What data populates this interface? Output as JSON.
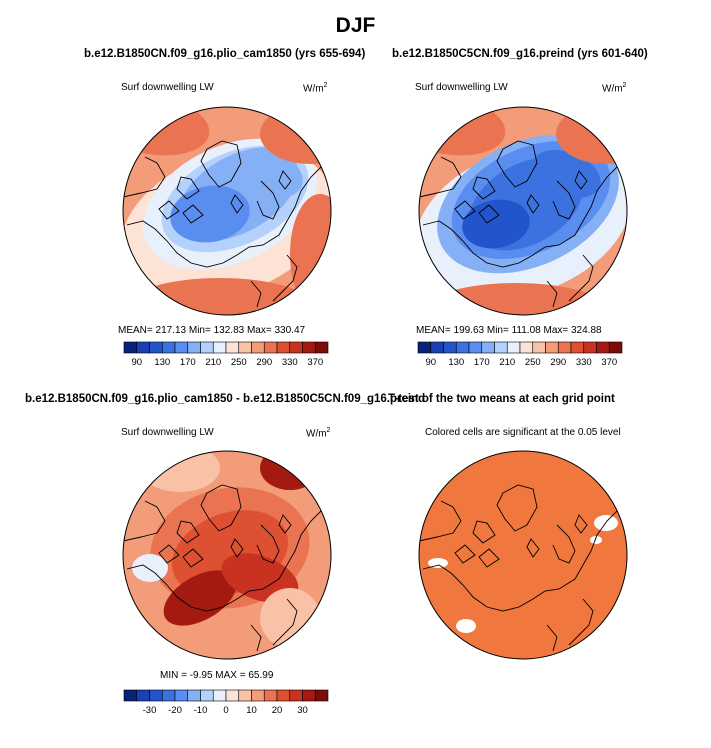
{
  "figure": {
    "season": "DJF"
  },
  "panels": {
    "p1": {
      "title": "b.e12.B1850CN.f09_g16.plio_cam1850 (yrs 655-694)",
      "variable": "Surf downwelling LW",
      "units": "W/m",
      "units_exp": "2",
      "stats": "MEAN= 217.13   Min= 132.83   Max= 330.47"
    },
    "p2": {
      "title": "b.e12.B1850C5CN.f09_g16.preind (yrs 601-640)",
      "variable": "Surf downwelling LW",
      "units": "W/m",
      "units_exp": "2",
      "stats": "MEAN= 199.63   Min= 111.08   Max= 324.88"
    },
    "p3": {
      "title": "b.e12.B1850CN.f09_g16.plio_cam1850 - b.e12.B1850C5CN.f09_g16.preind",
      "variable": "Surf downwelling LW",
      "units": "W/m",
      "units_exp": "2",
      "stats": "MIN =   -9.95 MAX =   65.99"
    },
    "p4": {
      "title": "T-test of the two means at each grid point",
      "variable": "Colored cells are significant at the 0.05 level"
    }
  },
  "chart_data": [
    {
      "type": "heatmap",
      "title": "b.e12.B1850CN.f09_g16.plio_cam1850 (yrs 655-694)",
      "variable": "Surf downwelling LW",
      "units": "W/m2",
      "mean": 217.13,
      "min": 132.83,
      "max": 330.47,
      "colorbar": {
        "levels": [
          90,
          110,
          130,
          150,
          170,
          190,
          210,
          230,
          250,
          270,
          290,
          310,
          330,
          350,
          370
        ],
        "tick_labels": [
          "90",
          "130",
          "170",
          "210",
          "250",
          "290",
          "330",
          "370"
        ],
        "colors": [
          "#08217a",
          "#1c3fb3",
          "#2255cc",
          "#3b72e0",
          "#5a8df0",
          "#86b0f5",
          "#b3d1fa",
          "#e8f0fc",
          "#fde3d6",
          "#f9c1a6",
          "#f39c79",
          "#ea7452",
          "#dd5032",
          "#c93220",
          "#a41a10",
          "#7a0d08"
        ]
      }
    },
    {
      "type": "heatmap",
      "title": "b.e12.B1850C5CN.f09_g16.preind (yrs 601-640)",
      "variable": "Surf downwelling LW",
      "units": "W/m2",
      "mean": 199.63,
      "min": 111.08,
      "max": 324.88,
      "colorbar": {
        "levels": [
          90,
          110,
          130,
          150,
          170,
          190,
          210,
          230,
          250,
          270,
          290,
          310,
          330,
          350,
          370
        ],
        "tick_labels": [
          "90",
          "130",
          "170",
          "210",
          "250",
          "290",
          "330",
          "370"
        ],
        "colors": [
          "#08217a",
          "#1c3fb3",
          "#2255cc",
          "#3b72e0",
          "#5a8df0",
          "#86b0f5",
          "#b3d1fa",
          "#e8f0fc",
          "#fde3d6",
          "#f9c1a6",
          "#f39c79",
          "#ea7452",
          "#dd5032",
          "#c93220",
          "#a41a10",
          "#7a0d08"
        ]
      }
    },
    {
      "type": "heatmap",
      "title": "b.e12.B1850CN.f09_g16.plio_cam1850 - b.e12.B1850C5CN.f09_g16.preind",
      "variable": "Surf downwelling LW",
      "units": "W/m2",
      "min": -9.95,
      "max": 65.99,
      "colorbar": {
        "levels": [
          -35,
          -30,
          -25,
          -20,
          -15,
          -10,
          -5,
          0,
          5,
          10,
          15,
          20,
          25,
          30,
          35
        ],
        "tick_labels": [
          "-30",
          "-20",
          "-10",
          "0",
          "10",
          "20",
          "30"
        ],
        "colors": [
          "#08217a",
          "#1c3fb3",
          "#2255cc",
          "#3b72e0",
          "#5a8df0",
          "#86b0f5",
          "#b3d1fa",
          "#e8f0fc",
          "#fde3d6",
          "#f9c1a6",
          "#f39c79",
          "#ea7452",
          "#dd5032",
          "#c93220",
          "#a41a10",
          "#7a0d08"
        ]
      }
    },
    {
      "type": "heatmap",
      "title": "T-test of the two means at each grid point",
      "note": "Colored cells are significant at the 0.05 level",
      "significant_color": "#f0783e"
    }
  ]
}
